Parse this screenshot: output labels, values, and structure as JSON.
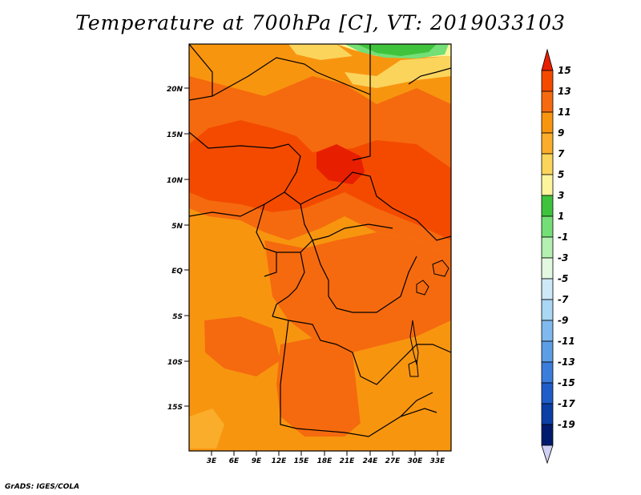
{
  "title": "Temperature at 700hPa [C], VT: 2019033103",
  "credit": "GrADS: IGES/COLA",
  "map": {
    "lat_labels": [
      "20N",
      "15N",
      "10N",
      "5N",
      "EQ",
      "5S",
      "10S",
      "15S"
    ],
    "lon_labels": [
      "3E",
      "6E",
      "9E",
      "12E",
      "15E",
      "18E",
      "21E",
      "24E",
      "27E",
      "30E",
      "33E"
    ]
  },
  "colorbar": {
    "labels": [
      "15",
      "13",
      "11",
      "9",
      "7",
      "5",
      "3",
      "1",
      "-1",
      "-3",
      "-5",
      "-7",
      "-9",
      "-11",
      "-13",
      "-15",
      "-17",
      "-19"
    ],
    "colors": [
      "#e81e00",
      "#f34a00",
      "#f56a0e",
      "#f8950f",
      "#f9ad2b",
      "#fbd45c",
      "#fdf59c",
      "#3fc33c",
      "#73df76",
      "#b3f0b1",
      "#e2f8e0",
      "#cde9f8",
      "#a9d7f4",
      "#7fb9ed",
      "#5c9ee6",
      "#3b7ddb",
      "#1f5dc9",
      "#0b3fa6",
      "#001b6e",
      "#d0d0f5"
    ]
  }
}
